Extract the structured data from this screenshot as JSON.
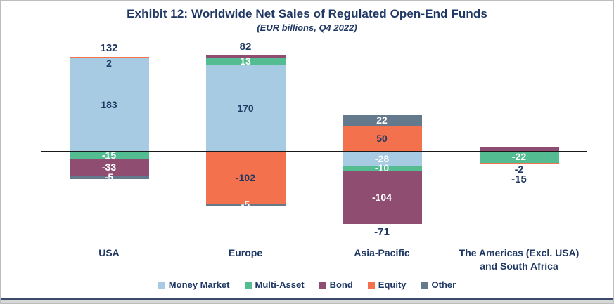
{
  "chart_data": {
    "type": "bar",
    "stacked": true,
    "title": "Exhibit 12: Worldwide Net Sales of Regulated Open-End Funds",
    "subtitle": "(EUR billions, Q4 2022)",
    "categories": [
      "USA",
      "Europe",
      "Asia-Pacific",
      "The Americas (Excl. USA) and South Africa"
    ],
    "series": [
      {
        "name": "Money Market",
        "color": "#A7CBE3",
        "values": [
          183,
          170,
          -28,
          null
        ],
        "labels": [
          "183",
          "170",
          "-28",
          ""
        ],
        "label_colors": [
          "navy",
          "navy",
          "white",
          ""
        ]
      },
      {
        "name": "Multi-Asset",
        "color": "#53BC90",
        "values": [
          -15,
          13,
          -10,
          -22
        ],
        "labels": [
          "-15",
          "13",
          "-10",
          "-22"
        ],
        "label_colors": [
          "white",
          "white",
          "white",
          "white"
        ]
      },
      {
        "name": "Bond",
        "color": "#8E4D71",
        "values": [
          -33,
          6,
          -104,
          9
        ],
        "labels": [
          "-33",
          "",
          "-104",
          ""
        ],
        "label_colors": [
          "white",
          "",
          "white",
          ""
        ]
      },
      {
        "name": "Equity",
        "color": "#F4714E",
        "values": [
          2,
          -102,
          50,
          -2
        ],
        "labels": [
          "2",
          "-102",
          "50",
          "-2"
        ],
        "label_colors": [
          "navy",
          "navy",
          "navy",
          "navy"
        ],
        "label_pos": [
          "below",
          "center",
          "center",
          "below"
        ]
      },
      {
        "name": "Other",
        "color": "#64798C",
        "values": [
          -5,
          -5,
          22,
          null
        ],
        "labels": [
          "-5",
          "-5",
          "22",
          ""
        ],
        "label_colors": [
          "white",
          "white",
          "white",
          ""
        ]
      }
    ],
    "totals": [
      "132",
      "82",
      "-71",
      "-15"
    ],
    "legend": {
      "position": "bottom",
      "entries": [
        "Money Market",
        "Multi-Asset",
        "Bond",
        "Equity",
        "Other"
      ]
    },
    "axis": {
      "zero_line": true,
      "gridlines": false,
      "value_axis_visible": false
    }
  },
  "colors": {
    "text_navy": "#1F3864",
    "label_white": "#FFFFFF",
    "zero_line": "#1A1A1A",
    "frame_border": "#BDBDBD",
    "bottom_rule": "#3A4A6B",
    "bottom_strip": "#D7D7D7",
    "background": "#FFFFFF"
  }
}
